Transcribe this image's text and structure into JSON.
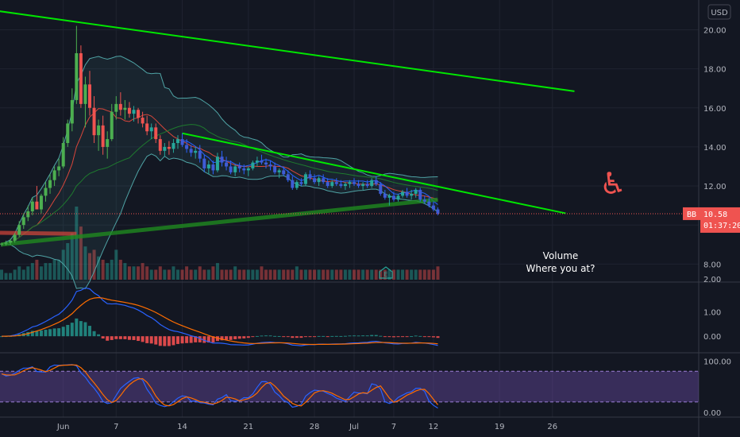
{
  "chart_data": {
    "type": "candlestick",
    "currency": "USD",
    "price_axis": {
      "ticks": [
        "20.00",
        "18.00",
        "16.00",
        "14.00",
        "12.00",
        "10.00",
        "8.00"
      ],
      "range": [
        7.2,
        21.2
      ]
    },
    "macd_axis": {
      "ticks": [
        "2.00",
        "1.00",
        "0.00"
      ],
      "range": [
        -0.55,
        2.0
      ]
    },
    "stoch_axis": {
      "ticks": [
        "100.00",
        "0.00"
      ],
      "range": [
        -5,
        110
      ],
      "band": [
        20,
        80
      ]
    },
    "x_ticks": [
      {
        "label": "Jun",
        "bar": 14
      },
      {
        "label": "7",
        "bar": 26
      },
      {
        "label": "14",
        "bar": 41
      },
      {
        "label": "21",
        "bar": 56
      },
      {
        "label": "28",
        "bar": 71
      },
      {
        "label": "Jul",
        "bar": 80
      },
      {
        "label": "7",
        "bar": 89
      },
      {
        "label": "12",
        "bar": 98
      },
      {
        "label": "19",
        "bar": 113
      },
      {
        "label": "26",
        "bar": 125
      }
    ],
    "bar_count_span": 130,
    "candles": [
      [
        9.0,
        9.1,
        8.9,
        9.05
      ],
      [
        9.05,
        9.2,
        8.95,
        9.1
      ],
      [
        9.1,
        9.3,
        9.0,
        9.2
      ],
      [
        9.2,
        9.6,
        9.1,
        9.5
      ],
      [
        9.5,
        10.2,
        9.4,
        10.0
      ],
      [
        10.0,
        10.6,
        9.8,
        10.4
      ],
      [
        10.4,
        11.0,
        10.2,
        10.7
      ],
      [
        10.7,
        11.4,
        10.5,
        11.2
      ],
      [
        11.2,
        12.0,
        10.9,
        10.8
      ],
      [
        10.8,
        11.6,
        10.6,
        11.5
      ],
      [
        11.5,
        12.2,
        11.2,
        11.9
      ],
      [
        11.9,
        12.6,
        11.6,
        12.3
      ],
      [
        12.3,
        13.0,
        12.0,
        12.8
      ],
      [
        12.8,
        13.4,
        12.5,
        13.0
      ],
      [
        13.0,
        14.5,
        12.9,
        14.2
      ],
      [
        14.2,
        15.4,
        14.0,
        15.2
      ],
      [
        15.2,
        17.0,
        14.8,
        16.4
      ],
      [
        16.4,
        20.2,
        16.2,
        18.8
      ],
      [
        18.8,
        19.2,
        16.0,
        16.2
      ],
      [
        16.2,
        17.6,
        15.0,
        17.2
      ],
      [
        17.2,
        17.9,
        15.6,
        16.0
      ],
      [
        16.0,
        16.6,
        14.2,
        14.6
      ],
      [
        14.6,
        15.4,
        13.8,
        15.1
      ],
      [
        15.1,
        15.6,
        13.6,
        14.0
      ],
      [
        14.0,
        14.8,
        13.4,
        14.4
      ],
      [
        14.4,
        16.2,
        14.3,
        15.8
      ],
      [
        15.8,
        16.6,
        15.4,
        16.2
      ],
      [
        16.2,
        16.8,
        15.6,
        15.9
      ],
      [
        15.9,
        16.4,
        15.4,
        16.0
      ],
      [
        16.0,
        16.3,
        15.5,
        15.7
      ],
      [
        15.7,
        16.1,
        15.3,
        15.9
      ],
      [
        15.9,
        16.0,
        15.2,
        15.5
      ],
      [
        15.5,
        15.8,
        15.0,
        15.2
      ],
      [
        15.2,
        15.6,
        14.6,
        14.8
      ],
      [
        14.8,
        15.2,
        14.4,
        15.0
      ],
      [
        15.0,
        15.2,
        14.2,
        14.4
      ],
      [
        14.4,
        14.6,
        13.6,
        13.8
      ],
      [
        13.8,
        14.2,
        13.5,
        14.0
      ],
      [
        14.0,
        14.3,
        13.6,
        13.9
      ],
      [
        13.9,
        14.4,
        13.7,
        14.2
      ],
      [
        14.2,
        14.6,
        13.9,
        14.4
      ],
      [
        14.4,
        14.7,
        14.0,
        14.1
      ],
      [
        14.1,
        14.4,
        13.7,
        13.9
      ],
      [
        13.9,
        14.1,
        13.5,
        13.7
      ],
      [
        13.7,
        14.0,
        13.4,
        13.8
      ],
      [
        13.8,
        14.1,
        13.2,
        13.4
      ],
      [
        13.4,
        13.6,
        12.7,
        12.9
      ],
      [
        12.9,
        13.3,
        12.6,
        13.1
      ],
      [
        13.1,
        13.3,
        12.6,
        12.8
      ],
      [
        12.8,
        13.7,
        12.7,
        13.5
      ],
      [
        13.5,
        13.8,
        13.0,
        13.2
      ],
      [
        13.2,
        13.5,
        12.8,
        13.0
      ],
      [
        13.0,
        13.3,
        12.6,
        12.7
      ],
      [
        12.7,
        13.1,
        12.5,
        13.0
      ],
      [
        13.0,
        13.2,
        12.7,
        12.9
      ],
      [
        12.9,
        13.1,
        12.6,
        12.8
      ],
      [
        12.8,
        13.0,
        12.5,
        12.9
      ],
      [
        12.9,
        13.3,
        12.8,
        13.2
      ],
      [
        13.2,
        13.5,
        13.0,
        13.3
      ],
      [
        13.3,
        13.6,
        13.1,
        13.2
      ],
      [
        13.2,
        13.4,
        12.9,
        13.1
      ],
      [
        13.1,
        13.3,
        12.8,
        13.0
      ],
      [
        13.0,
        13.2,
        12.6,
        12.7
      ],
      [
        12.7,
        12.9,
        12.4,
        12.8
      ],
      [
        12.8,
        13.0,
        12.5,
        12.6
      ],
      [
        12.6,
        12.8,
        12.2,
        12.3
      ],
      [
        12.3,
        12.5,
        11.8,
        11.9
      ],
      [
        11.9,
        12.3,
        11.8,
        12.2
      ],
      [
        12.2,
        12.4,
        12.0,
        12.1
      ],
      [
        12.1,
        12.7,
        12.0,
        12.6
      ],
      [
        12.6,
        12.8,
        12.3,
        12.4
      ],
      [
        12.4,
        12.6,
        12.1,
        12.2
      ],
      [
        12.2,
        12.5,
        12.0,
        12.4
      ],
      [
        12.4,
        12.6,
        12.1,
        12.2
      ],
      [
        12.2,
        12.4,
        11.9,
        12.0
      ],
      [
        12.0,
        12.3,
        11.9,
        12.2
      ],
      [
        12.2,
        12.4,
        12.0,
        12.1
      ],
      [
        12.1,
        12.3,
        11.9,
        12.0
      ],
      [
        12.0,
        12.2,
        11.8,
        12.1
      ],
      [
        12.1,
        12.3,
        11.9,
        12.2
      ],
      [
        12.2,
        12.4,
        12.0,
        12.1
      ],
      [
        12.1,
        12.3,
        11.9,
        12.0
      ],
      [
        12.0,
        12.2,
        11.8,
        12.1
      ],
      [
        12.1,
        12.3,
        11.9,
        12.0
      ],
      [
        12.0,
        12.4,
        11.9,
        12.3
      ],
      [
        12.3,
        12.5,
        12.0,
        12.1
      ],
      [
        12.1,
        12.2,
        11.5,
        11.6
      ],
      [
        11.6,
        11.8,
        11.3,
        11.4
      ],
      [
        11.4,
        11.6,
        11.0,
        11.5
      ],
      [
        11.5,
        11.7,
        11.2,
        11.3
      ],
      [
        11.3,
        11.6,
        11.2,
        11.5
      ],
      [
        11.5,
        11.8,
        11.4,
        11.7
      ],
      [
        11.7,
        11.9,
        11.4,
        11.5
      ],
      [
        11.5,
        11.8,
        11.3,
        11.6
      ],
      [
        11.6,
        11.9,
        11.4,
        11.8
      ],
      [
        11.8,
        11.9,
        11.2,
        11.3
      ],
      [
        11.3,
        11.5,
        11.1,
        11.2
      ],
      [
        11.2,
        11.4,
        10.9,
        11.0
      ],
      [
        11.0,
        11.2,
        10.7,
        10.8
      ],
      [
        10.8,
        10.9,
        10.5,
        10.58
      ]
    ],
    "volume": [
      3,
      2,
      2,
      3,
      4,
      3,
      4,
      5,
      6,
      4,
      5,
      5,
      6,
      6,
      9,
      11,
      14,
      22,
      16,
      10,
      8,
      9,
      7,
      6,
      5,
      6,
      9,
      6,
      5,
      4,
      4,
      4,
      5,
      4,
      3,
      3,
      4,
      3,
      3,
      4,
      3,
      3,
      4,
      3,
      3,
      4,
      3,
      3,
      4,
      5,
      3,
      3,
      3,
      4,
      3,
      3,
      3,
      3,
      3,
      4,
      3,
      3,
      3,
      3,
      3,
      3,
      3,
      4,
      3,
      3,
      3,
      3,
      3,
      3,
      3,
      3,
      3,
      3,
      3,
      3,
      3,
      3,
      3,
      3,
      3,
      3,
      3,
      3,
      3,
      3,
      3,
      3,
      3,
      3,
      3,
      3,
      3,
      3,
      3,
      4
    ],
    "trendlines": [
      {
        "from": [
          -2,
          21.0
        ],
        "to": [
          130,
          16.85
        ],
        "color": "#00e600"
      },
      {
        "from": [
          41,
          14.7
        ],
        "to": [
          128,
          10.6
        ],
        "color": "#00e600"
      },
      {
        "from": [
          0,
          9.0
        ],
        "to": [
          99,
          11.3
        ],
        "color": "#1f8a1f"
      }
    ],
    "last_price": "10.58",
    "price_tag": "BB",
    "countdown": "01:37:20",
    "annotation_lines": [
      "Volume",
      "Where you at?"
    ],
    "watermark_glyph": "♿",
    "earnings_marker": "E",
    "colors": {
      "up": "#26a69a",
      "down": "#ef5350",
      "up_hi": "#4caf50",
      "bb": "#4fa3a5",
      "ma1": "#d9463b",
      "ma2": "#1e7a2e",
      "macd": "#2962ff",
      "signal": "#ff6d00",
      "stoch_k": "#2962ff",
      "stoch_d": "#ff6d00",
      "stoch_band": "#7e57c2",
      "trend": "#00e600"
    }
  }
}
